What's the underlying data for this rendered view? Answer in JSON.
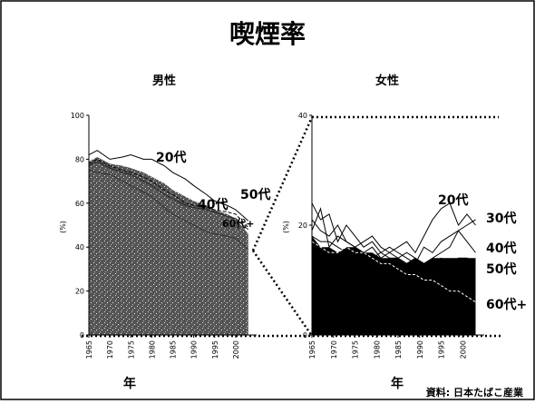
{
  "title": "喫煙率",
  "source": "資料: 日本たばこ産業",
  "chart_data": [
    {
      "type": "line",
      "title": "男性",
      "ylabel": "(%)",
      "xlabel": "年",
      "ylim": [
        0,
        100
      ],
      "yticks": [
        "0",
        "20",
        "40",
        "60",
        "80",
        "100"
      ],
      "xticks": [
        "1965",
        "1970",
        "1975",
        "1980",
        "1985",
        "1990",
        "1995",
        "2000"
      ],
      "series": [
        {
          "name": "20代",
          "x": [
            1965,
            1967,
            1970,
            1973,
            1975,
            1978,
            1980,
            1983,
            1985,
            1988,
            1990,
            1993,
            1995,
            1998,
            2000,
            2003
          ],
          "values": [
            82,
            84,
            80,
            81,
            82,
            80,
            80,
            77,
            74,
            71,
            68,
            64,
            61,
            59,
            57,
            52
          ]
        },
        {
          "name": "50代",
          "x": [
            1965,
            1967,
            1970,
            1973,
            1975,
            1978,
            1980,
            1983,
            1985,
            1988,
            1990,
            1993,
            1995,
            1998,
            2000,
            2003
          ],
          "values": [
            78,
            80,
            77,
            75,
            74,
            72,
            70,
            66,
            64,
            60,
            59,
            58,
            57,
            56,
            55,
            49
          ]
        },
        {
          "name": "40代",
          "x": [
            1965,
            1967,
            1970,
            1973,
            1975,
            1978,
            1980,
            1983,
            1985,
            1988,
            1990,
            1993,
            1995,
            1998,
            2000,
            2003
          ],
          "values": [
            77,
            79,
            76,
            74,
            73,
            70,
            68,
            64,
            62,
            59,
            58,
            57,
            56,
            54,
            53,
            48
          ]
        },
        {
          "name": "60代+",
          "x": [
            1965,
            1967,
            1970,
            1973,
            1975,
            1978,
            1980,
            1983,
            1985,
            1988,
            1990,
            1993,
            1995,
            1998,
            2000,
            2003
          ],
          "values": [
            75,
            74,
            73,
            70,
            68,
            65,
            63,
            58,
            55,
            52,
            50,
            47,
            46,
            45,
            44,
            39
          ]
        }
      ],
      "area_series": {
        "x": [
          1965,
          1967,
          1970,
          1973,
          1975,
          1978,
          1980,
          1983,
          1985,
          1988,
          1990,
          1993,
          1995,
          1998,
          2000,
          2003
        ],
        "values": [
          79,
          81,
          78,
          77,
          76,
          74,
          72,
          69,
          66,
          63,
          61,
          59,
          57,
          55,
          53,
          46
        ]
      }
    },
    {
      "type": "line",
      "title": "女性",
      "ylabel": "(%)",
      "xlabel": "年",
      "ylim": [
        0,
        40
      ],
      "yticks": [
        "0",
        "20",
        "40"
      ],
      "xticks": [
        "1965",
        "1970",
        "1975",
        "1980",
        "1985",
        "1990",
        "1995",
        "2000"
      ],
      "series": [
        {
          "name": "20代",
          "x": [
            1965,
            1967,
            1969,
            1971,
            1973,
            1975,
            1977,
            1979,
            1981,
            1983,
            1985,
            1987,
            1989,
            1991,
            1993,
            1995,
            1997,
            1999,
            2001,
            2003
          ],
          "values": [
            19,
            23,
            16,
            18,
            17,
            16,
            15,
            16,
            14,
            15,
            16,
            17,
            15,
            18,
            21,
            23,
            24,
            20,
            22,
            20
          ]
        },
        {
          "name": "30代",
          "x": [
            1965,
            1967,
            1969,
            1971,
            1973,
            1975,
            1977,
            1979,
            1981,
            1983,
            1985,
            1987,
            1989,
            1991,
            1993,
            1995,
            1997,
            1999,
            2001,
            2003
          ],
          "values": [
            24,
            21,
            22,
            17,
            20,
            18,
            16,
            17,
            15,
            16,
            15,
            14,
            13,
            16,
            15,
            17,
            18,
            19,
            20,
            21
          ]
        },
        {
          "name": "40代",
          "x": [
            1965,
            1967,
            1969,
            1971,
            1973,
            1975,
            1977,
            1979,
            1981,
            1983,
            1985,
            1987,
            1989,
            1991,
            1993,
            1995,
            1997,
            1999,
            2001,
            2003
          ],
          "values": [
            21,
            19,
            18,
            20,
            17,
            16,
            17,
            18,
            16,
            15,
            14,
            15,
            14,
            13,
            14,
            15,
            16,
            19,
            17,
            15
          ]
        },
        {
          "name": "50代",
          "x": [
            1965,
            1967,
            1969,
            1971,
            1973,
            1975,
            1977,
            1979,
            1981,
            1983,
            1985,
            1987,
            1989,
            1991,
            1993,
            1995,
            1997,
            1999,
            2001,
            2003
          ],
          "values": [
            18,
            17,
            17,
            16,
            15,
            16,
            15,
            14,
            15,
            14,
            14,
            13,
            14,
            13,
            13,
            14,
            13,
            14,
            14,
            13
          ]
        },
        {
          "name": "60代+",
          "x": [
            1965,
            1967,
            1969,
            1971,
            1973,
            1975,
            1977,
            1979,
            1981,
            1983,
            1985,
            1987,
            1989,
            1991,
            1993,
            1995,
            1997,
            1999,
            2001,
            2003
          ],
          "values": [
            17,
            16,
            15,
            15,
            16,
            15,
            15,
            14,
            13,
            13,
            12,
            11,
            11,
            10,
            10,
            9,
            8,
            8,
            7,
            6
          ]
        }
      ],
      "area_series": {
        "x": [
          1965,
          1967,
          1969,
          1971,
          1973,
          1975,
          1977,
          1979,
          1981,
          1983,
          1985,
          1987,
          1989,
          1991,
          1993,
          1995,
          1997,
          1999,
          2001,
          2003
        ],
        "values": [
          18,
          16,
          16,
          15,
          16,
          16,
          15,
          15,
          14,
          14,
          14,
          13,
          14,
          13,
          14,
          14,
          14,
          14,
          14,
          14
        ]
      }
    }
  ]
}
